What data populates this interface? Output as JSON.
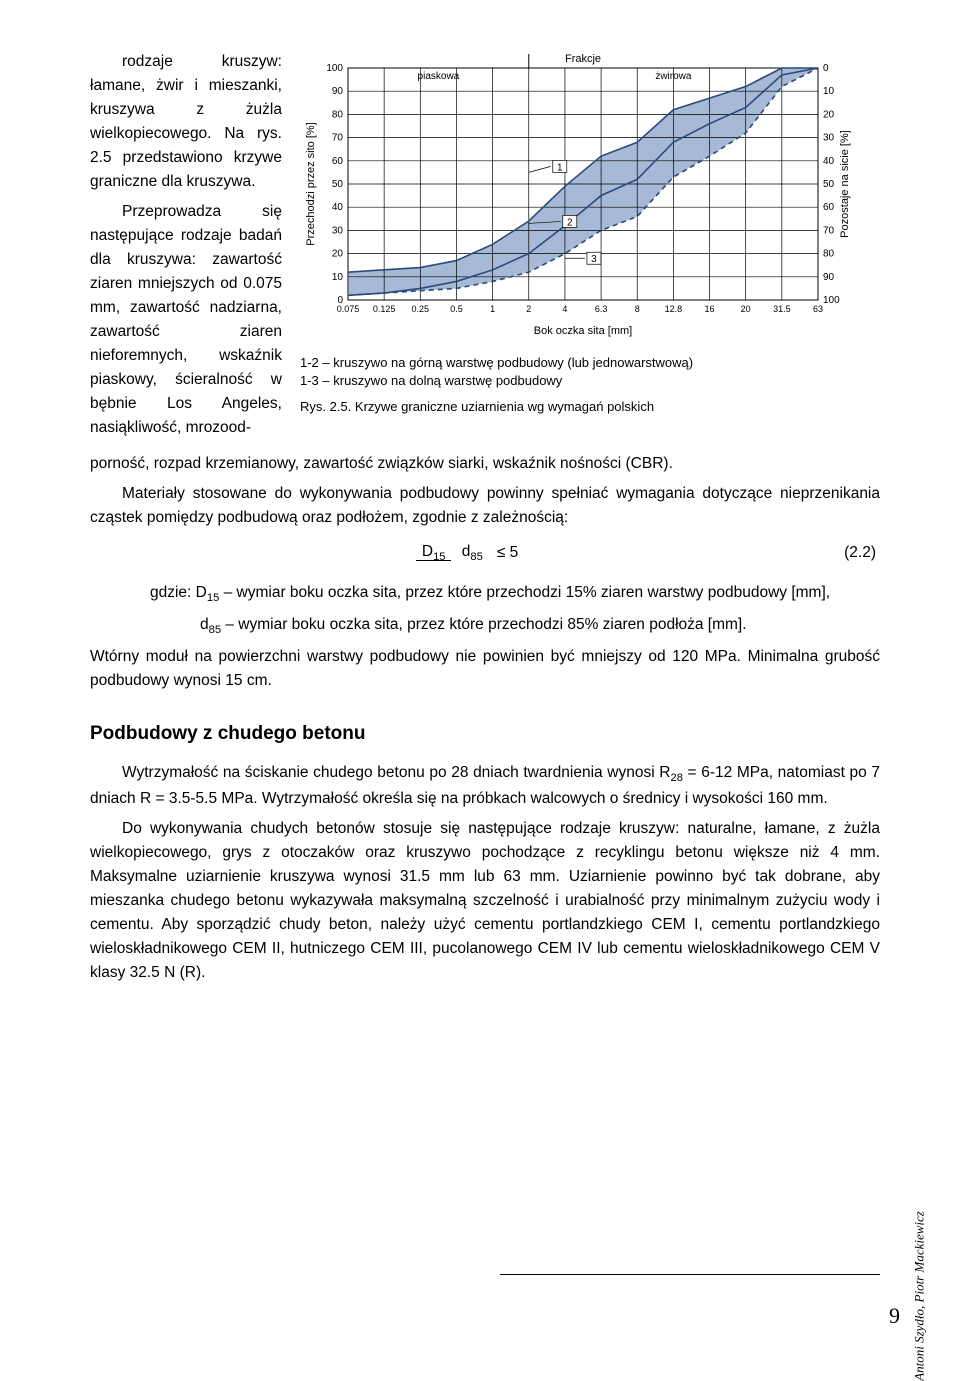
{
  "body": {
    "p1": "rodzaje kruszyw: łamane, żwir i mieszanki, kruszywa z żużla wielkopiecowego. Na rys. 2.5 przedstawiono krzywe graniczne dla kruszywa.",
    "p2": "Przeprowadza się następujące rodzaje badań dla kruszywa: zawartość ziaren mniejszych od 0.075 mm, zawartość nadziarna, zawartość ziaren nieforemnych, wskaźnik piaskowy, ścieralność w bębnie Los Angeles, nasiąkliwość, mrozoodporność, rozpad krzemianowy, zawartość związków siarki, wskaźnik nośności (CBR).",
    "p3": "Materiały stosowane do wykonywania podbudowy powinny spełniać wymagania dotyczące nieprzenikania cząstek pomiędzy podbudową oraz podłożem, zgodnie z zależnością:",
    "def_intro": "gdzie: D",
    "def_d15_sub": "15",
    "def_d15": " – wymiar boku oczka sita, przez które przechodzi 15% ziaren warstwy podbudowy [mm],",
    "def_d85_sym": "d",
    "def_d85_sub": "85",
    "def_d85": " – wymiar boku oczka sita, przez które przechodzi 85% ziaren podłoża [mm].",
    "p4": "Wtórny moduł na powierzchni warstwy podbudowy nie powinien być mniejszy od 120 MPa. Minimalna grubość podbudowy wynosi 15 cm.",
    "h2": "Podbudowy z chudego betonu",
    "p5a": "Wytrzymałość na ściskanie chudego betonu po 28 dniach twardnienia wynosi R",
    "p5sub": "28",
    "p5b": " = 6-12 MPa, natomiast po 7 dniach R = 3.5-5.5 MPa. Wytrzymałość określa się na próbkach walcowych o średnicy i wysokości 160 mm.",
    "p6": "Do wykonywania chudych betonów stosuje się następujące rodzaje kruszyw: naturalne, łamane, z żużla wielkopiecowego, grys z otoczaków oraz kruszywo pochodzące z recyklingu betonu większe niż 4 mm. Maksymalne uziarnienie kruszywa wynosi 31.5 mm lub 63 mm. Uziarnienie powinno być tak dobrane, aby mieszanka chudego betonu wykazywała maksymalną szczelność i urabialność przy minimalnym zużyciu wody i cementu. Aby sporządzić chudy beton, należy użyć cementu portlandzkiego CEM I, cementu portlandzkiego wieloskładnikowego CEM II, hutniczego CEM III, pucolanowego CEM IV lub cementu wieloskładnikowego CEM V klasy 32.5 N (R)."
  },
  "equation": {
    "num": "D",
    "num_sub": "15",
    "den": "d",
    "den_sub": "85",
    "rel": "≤ 5",
    "tag": "(2.2)"
  },
  "figure": {
    "legend1": "1-2 – kruszywo na górną warstwę podbudowy (lub jednowarstwową)",
    "legend2": "1-3 – kruszywo na dolną warstwę podbudowy",
    "caption": "Rys. 2.5. Krzywe graniczne uziarnienia wg wymagań polskich"
  },
  "chart": {
    "type": "line",
    "title": "Frakcje",
    "cat_labels": [
      "piaskowa",
      "żwirowa"
    ],
    "left_axis_label": "Przechodzi przez sito [%]",
    "right_axis_label": "Pozostaje na sicie [%]",
    "x_axis_label": "Bok oczka sita [mm]",
    "x_ticks": [
      "0.075",
      "0.125",
      "0.25",
      "0.5",
      "1",
      "2",
      "4",
      "6.3",
      "8",
      "12.8",
      "16",
      "20",
      "31.5",
      "63"
    ],
    "left_y_ticks": [
      0,
      10,
      20,
      30,
      40,
      50,
      60,
      70,
      80,
      90,
      100
    ],
    "right_y_ticks": [
      100,
      90,
      80,
      70,
      60,
      50,
      40,
      30,
      20,
      10,
      0
    ],
    "curves": {
      "1": [
        [
          0,
          12
        ],
        [
          1,
          13
        ],
        [
          2,
          14
        ],
        [
          3,
          17
        ],
        [
          4,
          24
        ],
        [
          5,
          34
        ],
        [
          6,
          49
        ],
        [
          7,
          62
        ],
        [
          8,
          68
        ],
        [
          9,
          82
        ],
        [
          10,
          87
        ],
        [
          11,
          92
        ],
        [
          12,
          100
        ],
        [
          13,
          100
        ]
      ],
      "2": [
        [
          0,
          2
        ],
        [
          1,
          3
        ],
        [
          2,
          5
        ],
        [
          3,
          8
        ],
        [
          4,
          13
        ],
        [
          5,
          20
        ],
        [
          6,
          32
        ],
        [
          7,
          45
        ],
        [
          8,
          52
        ],
        [
          9,
          68
        ],
        [
          10,
          76
        ],
        [
          11,
          83
        ],
        [
          12,
          97
        ],
        [
          13,
          100
        ]
      ],
      "3": [
        [
          0,
          2
        ],
        [
          1,
          3
        ],
        [
          2,
          4
        ],
        [
          3,
          5
        ],
        [
          4,
          8
        ],
        [
          5,
          12
        ],
        [
          6,
          20
        ],
        [
          7,
          30
        ],
        [
          8,
          36
        ],
        [
          9,
          53
        ],
        [
          10,
          62
        ],
        [
          11,
          72
        ],
        [
          12,
          92
        ],
        [
          13,
          100
        ]
      ]
    },
    "style": {
      "band_fill": "#a6b9d6",
      "line_color": "#2b4a7a",
      "line_width": 1.6,
      "dash_pattern": "5,4",
      "grid_color": "#000000",
      "grid_width": 0.7,
      "background": "#ffffff",
      "axis_fontsize": 10,
      "label_fontsize": 11,
      "title_fontsize": 11,
      "curve_marker_box": {
        "w": 14,
        "h": 12,
        "fill": "#ffffff",
        "stroke": "#000000"
      }
    }
  },
  "sidebar": {
    "authors": "Antoni Szydło, Piotr Mackiewicz"
  },
  "page_number": "9"
}
